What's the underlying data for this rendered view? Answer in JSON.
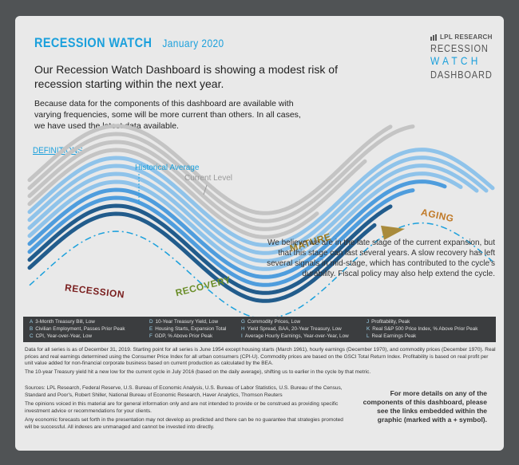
{
  "header": {
    "title": "RECESSION WATCH",
    "date": "January 2020",
    "headline": "Our Recession Watch Dashboard is showing a modest risk of recession starting within the next year.",
    "intro": "Because data for the components of this dashboard are available with varying frequencies, some will be more current than others. In all cases, we have used the latest data available.",
    "definitions_link": "DEFINITIONS"
  },
  "brand": {
    "company": "LPL RESEARCH",
    "line1": "RECESSION",
    "line2": "WATCH",
    "line3": "DASHBOARD"
  },
  "chart": {
    "historical_average_label": "Historical Average",
    "current_level_label": "Current Level",
    "stages": [
      "RECESSION",
      "RECOVERY",
      "MATURE",
      "AGING"
    ],
    "stage_colors": [
      "#7a1f1f",
      "#6b8e2a",
      "#9a7a1f",
      "#c07a28"
    ],
    "line_colors": {
      "gray": "#c4c4c4",
      "light_blue": "#8fc3ea",
      "mid_blue": "#4f9ddd",
      "dark_blue": "#225c8c"
    },
    "commentary": "We believe we are in the late stage of the current expansion, but that this stage can last several years. A slow recovery has left several signals in mid-stage, which has contributed to the cycle's durability. Fiscal policy may also help extend the cycle."
  },
  "legend": [
    {
      "key": "A",
      "label": "3-Month Treasury Bill, Low"
    },
    {
      "key": "B",
      "label": "Civilian Employment, Passes Prior Peak"
    },
    {
      "key": "C",
      "label": "CPI, Year-over-Year, Low"
    },
    {
      "key": "D",
      "label": "10-Year Treasury Yield, Low"
    },
    {
      "key": "E",
      "label": "Housing Starts, Expansion Total"
    },
    {
      "key": "F",
      "label": "GDP, % Above Prior Peak"
    },
    {
      "key": "G",
      "label": "Commodity Prices, Low"
    },
    {
      "key": "H",
      "label": "Yield Spread, BAA, 20-Year Treasury, Low"
    },
    {
      "key": "I",
      "label": "Average Hourly Earnings, Year-over-Year, Low"
    },
    {
      "key": "J",
      "label": "Profitability, Peak"
    },
    {
      "key": "K",
      "label": "Real S&P 500 Price Index, % Above Prior Peak"
    },
    {
      "key": "L",
      "label": "Real Earnings Peak"
    }
  ],
  "notes": {
    "data": "Data for all series is as of December 31, 2019. Starting point for all series is June 1954 except housing starts (March 1961), hourly earnings (December 1970), and commodity prices (December 1970). Real prices and real earnings determined using the Consumer Price Index for all urban consumers (CPI-U). Commodity prices are based on the GSCI Total Return Index. Profitability is based on real profit per unit value added for non-financial corporate business based on current production as calculated by the BEA.",
    "treasury": "The 10-year Treasury yield hit a new low for the current cycle in July 2016 (based on the daily average), shifting us to earlier in the cycle by that metric.",
    "sources": "Sources: LPL Research, Federal Reserve, U.S. Bureau of Economic Analysis, U.S. Bureau of Labor Statistics, U.S. Bureau of the Census, Standard and Poor's, Robert Shiller, National Bureau of Economic Research, Haver Analytics, Thomson Reuters",
    "opinions": "The opinions voiced in this material are for general information only and are not intended to provide or be construed as providing specific investment advice or recommendations for your clients.",
    "forecasts": "Any economic forecasts set forth in the presentation may not develop as predicted and there can be no guarantee that strategies promoted will be successful. All indexes are unmanaged and cannot be invested into directly.",
    "more_details": "For more details on any of the components of this dashboard, please see the links embedded within the graphic (marked with a + symbol)."
  }
}
